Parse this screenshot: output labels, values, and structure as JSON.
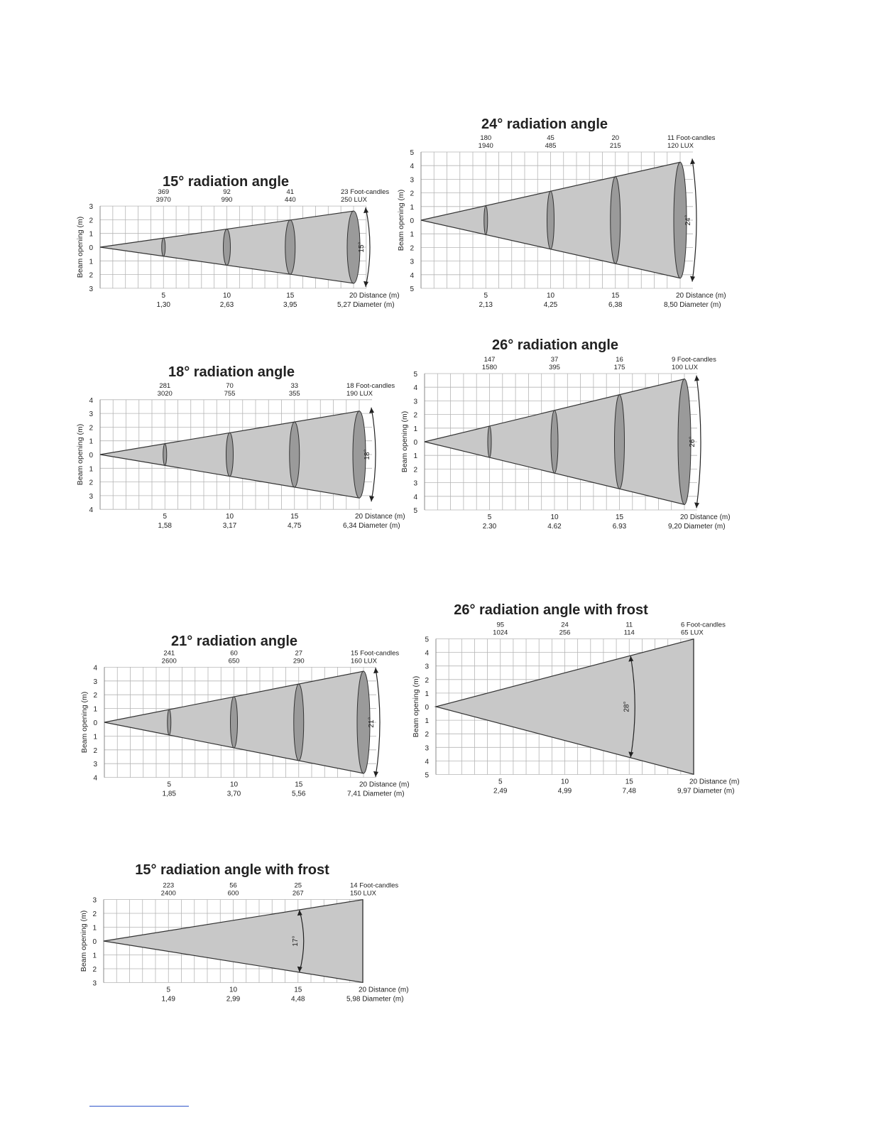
{
  "page": {
    "footnote_rule_color": "#2f55c9"
  },
  "colors": {
    "cone_fill": "#c8c8c8",
    "cone_stroke": "#333333",
    "ellipse_fill": "#9a9a9a",
    "grid": "#b5b5b5",
    "text": "#222222"
  },
  "ylabel": "Beam opening (m)",
  "distance_unit_label": "Distance (m)",
  "diameter_unit_label": "Diameter (m)",
  "diagrams": [
    {
      "id": "d15",
      "title": "15° radiation angle",
      "angle_label": "15°",
      "frost": false,
      "y_max": 3,
      "half_opening_at_20": 2.635,
      "foot_candles": [
        "369",
        "92",
        "41",
        "23 Foot-candles"
      ],
      "lux": [
        "3970",
        "990",
        "440",
        "250 LUX"
      ],
      "distances": [
        "5",
        "10",
        "15",
        "20 Distance (m)"
      ],
      "diameters": [
        "1,30",
        "2,63",
        "3,95",
        "5,27 Diameter (m)"
      ]
    },
    {
      "id": "d24",
      "title": "24° radiation angle",
      "angle_label": "24°",
      "frost": false,
      "y_max": 5,
      "half_opening_at_20": 4.25,
      "foot_candles": [
        "180",
        "45",
        "20",
        "11 Foot-candles"
      ],
      "lux": [
        "1940",
        "485",
        "215",
        "120 LUX"
      ],
      "distances": [
        "5",
        "10",
        "15",
        "20 Distance (m)"
      ],
      "diameters": [
        "2,13",
        "4,25",
        "6,38",
        "8,50 Diameter (m)"
      ]
    },
    {
      "id": "d18",
      "title": "18° radiation angle",
      "angle_label": "18°",
      "frost": false,
      "y_max": 4,
      "half_opening_at_20": 3.17,
      "foot_candles": [
        "281",
        "70",
        "33",
        "18 Foot-candles"
      ],
      "lux": [
        "3020",
        "755",
        "355",
        "190 LUX"
      ],
      "distances": [
        "5",
        "10",
        "15",
        "20 Distance (m)"
      ],
      "diameters": [
        "1,58",
        "3,17",
        "4,75",
        "6,34 Diameter (m)"
      ]
    },
    {
      "id": "d26",
      "title": "26° radiation angle",
      "angle_label": "26°",
      "frost": false,
      "y_max": 5,
      "half_opening_at_20": 4.6,
      "foot_candles": [
        "147",
        "37",
        "16",
        "9 Foot-candles"
      ],
      "lux": [
        "1580",
        "395",
        "175",
        "100 LUX"
      ],
      "distances": [
        "5",
        "10",
        "15",
        "20 Distance (m)"
      ],
      "diameters": [
        "2.30",
        "4.62",
        "6.93",
        "9,20 Diameter (m)"
      ]
    },
    {
      "id": "d21",
      "title": "21° radiation angle",
      "angle_label": "21°",
      "frost": false,
      "y_max": 4,
      "half_opening_at_20": 3.705,
      "foot_candles": [
        "241",
        "60",
        "27",
        "15 Foot-candles"
      ],
      "lux": [
        "2600",
        "650",
        "290",
        "160 LUX"
      ],
      "distances": [
        "5",
        "10",
        "15",
        "20 Distance (m)"
      ],
      "diameters": [
        "1,85",
        "3,70",
        "5,56",
        "7,41 Diameter (m)"
      ]
    },
    {
      "id": "d26f",
      "title": "26° radiation angle with frost",
      "angle_label": "28°",
      "frost": true,
      "y_max": 5,
      "half_opening_at_20": 4.985,
      "foot_candles": [
        "95",
        "24",
        "11",
        "6 Foot-candles"
      ],
      "lux": [
        "1024",
        "256",
        "114",
        "65 LUX"
      ],
      "distances": [
        "5",
        "10",
        "15",
        "20 Distance (m)"
      ],
      "diameters": [
        "2,49",
        "4,99",
        "7,48",
        "9,97 Diameter (m)"
      ]
    },
    {
      "id": "d15f",
      "title": "15° radiation angle with frost",
      "angle_label": "17°",
      "frost": true,
      "y_max": 3,
      "half_opening_at_20": 2.99,
      "foot_candles": [
        "223",
        "56",
        "25",
        "14 Foot-candles"
      ],
      "lux": [
        "2400",
        "600",
        "267",
        "150 LUX"
      ],
      "distances": [
        "5",
        "10",
        "15",
        "20 Distance (m)"
      ],
      "diameters": [
        "1,49",
        "2,99",
        "4,48",
        "5,98 Diameter (m)"
      ]
    }
  ]
}
